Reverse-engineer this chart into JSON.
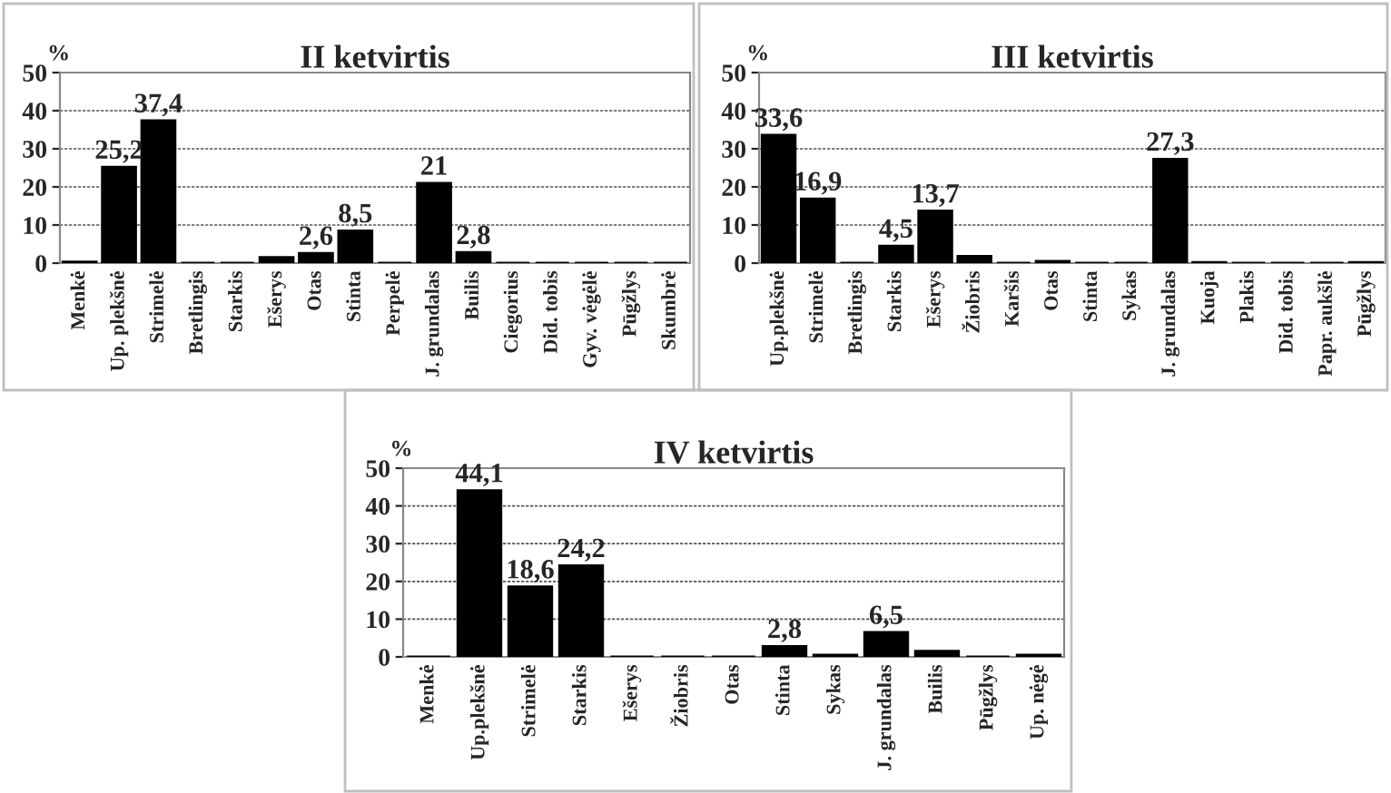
{
  "chart_data": [
    {
      "type": "bar",
      "title": "II ketvirtis",
      "ylabel": "%",
      "categories": [
        "Menkė",
        "Up. plekšnė",
        "Strimelė",
        "Bretlingis",
        "Starkis",
        "Ešerys",
        "Otas",
        "Stinta",
        "Perpelė",
        "J. grundalas",
        "Builis",
        "Ciegorius",
        "Did. tobis",
        "Gyv. vėgėlė",
        "Pūgžlys",
        "Skumbrė"
      ],
      "values": [
        0.3,
        25.2,
        37.4,
        0,
        0,
        1.5,
        2.6,
        8.5,
        0,
        21,
        2.8,
        0,
        0,
        0,
        0,
        0
      ],
      "value_labels": [
        null,
        "25,2",
        "37,4",
        null,
        null,
        null,
        "2,6",
        "8,5",
        null,
        "21",
        "2,8",
        null,
        null,
        null,
        null,
        null
      ],
      "color": "#000000",
      "ylim": [
        0,
        50
      ],
      "yticks": [
        0,
        10,
        20,
        30,
        40,
        50
      ],
      "grid": "y"
    },
    {
      "type": "bar",
      "title": "III ketvirtis",
      "ylabel": "%",
      "categories": [
        "Up.plekšnė",
        "Strimelė",
        "Bretlingis",
        "Starkis",
        "Ešerys",
        "Žiobris",
        "Karšis",
        "Otas",
        "Stinta",
        "Sykas",
        "J. grundalas",
        "Kuoja",
        "Plakis",
        "Did. tobis",
        "Papr. aukšlė",
        "Pūgžlys"
      ],
      "values": [
        33.6,
        16.9,
        0,
        4.5,
        13.7,
        1.8,
        0,
        0.5,
        0,
        0,
        27.3,
        0.2,
        0,
        0,
        0,
        0.2
      ],
      "value_labels": [
        "33,6",
        "16,9",
        null,
        "4,5",
        "13,7",
        null,
        null,
        null,
        null,
        null,
        "27,3",
        null,
        null,
        null,
        null,
        null
      ],
      "color": "#000000",
      "ylim": [
        0,
        50
      ],
      "yticks": [
        0,
        10,
        20,
        30,
        40,
        50
      ],
      "grid": "y"
    },
    {
      "type": "bar",
      "title": "IV ketvirtis",
      "ylabel": "%",
      "categories": [
        "Menkė",
        "Up.plekšnė",
        "Strimelė",
        "Starkis",
        "Ešerys",
        "Žiobris",
        "Otas",
        "Stinta",
        "Sykas",
        "J. grundalas",
        "Builis",
        "Pūgžlys",
        "Up. nėgė"
      ],
      "values": [
        0,
        44.1,
        18.6,
        24.2,
        0,
        0,
        0,
        2.8,
        0.5,
        6.5,
        1.5,
        0,
        0.5
      ],
      "value_labels": [
        null,
        "44,1",
        "18,6",
        "24,2",
        null,
        null,
        null,
        "2,8",
        null,
        "6,5",
        null,
        null,
        null
      ],
      "color": "#000000",
      "ylim": [
        0,
        50
      ],
      "yticks": [
        0,
        10,
        20,
        30,
        40,
        50
      ],
      "grid": "y"
    }
  ]
}
